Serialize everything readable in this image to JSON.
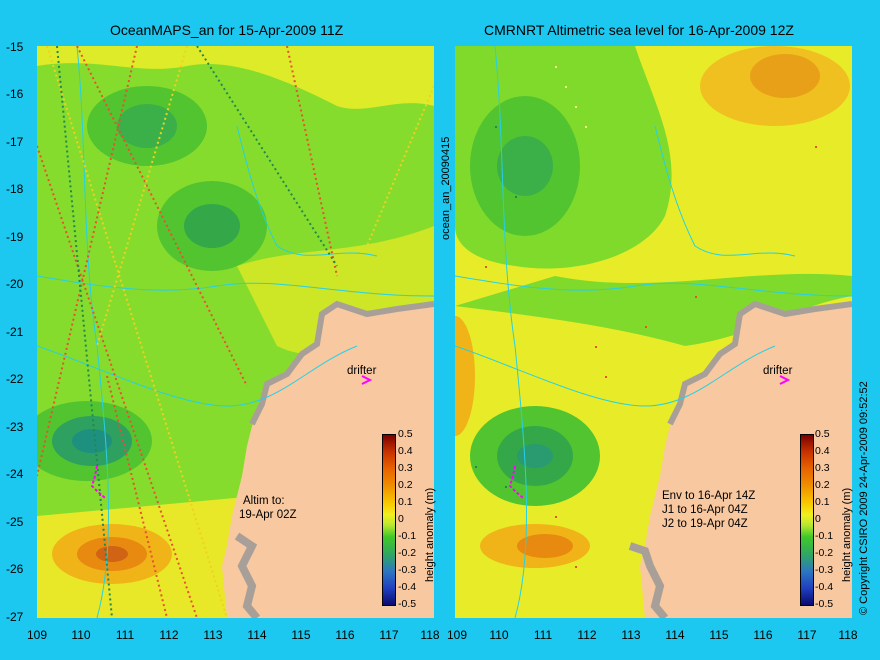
{
  "titles": {
    "left": "OceanMAPS_an for 15-Apr-2009 11Z",
    "right": "CMRNRT Altimetric sea level  for 16-Apr-2009 12Z"
  },
  "axes": {
    "y_ticks": [
      "-15",
      "-16",
      "-17",
      "-18",
      "-19",
      "-20",
      "-21",
      "-22",
      "-23",
      "-24",
      "-25",
      "-26",
      "-27"
    ],
    "x_ticks_left": [
      "109",
      "110",
      "111",
      "112",
      "113",
      "114",
      "115",
      "116",
      "117",
      "118"
    ],
    "x_ticks_right": [
      "109",
      "110",
      "111",
      "112",
      "113",
      "114",
      "115",
      "116",
      "117",
      "118"
    ]
  },
  "colorbar": {
    "label": "height anomaly (m)",
    "ticks": [
      "0.5",
      "0.4",
      "0.3",
      "0.2",
      "0.1",
      "0",
      "-0.1",
      "-0.2",
      "-0.3",
      "-0.4",
      "-0.5"
    ]
  },
  "labels": {
    "drifter": "drifter",
    "vertical_id": "ocean_an_20090415",
    "copyright": "© Copyright CSIRO 2009   24-Apr-2009 09:52:52"
  },
  "notes": {
    "left": [
      "Altim to:",
      "19-Apr 02Z"
    ],
    "right": [
      "Env to 16-Apr 14Z",
      "J1 to 16-Apr 04Z",
      "J2 to 19-Apr 04Z"
    ]
  },
  "colors": {
    "background": "#1cc8f0",
    "land": "#f8c8a0",
    "coast": "#b0a8a0",
    "drifter": "#ff00ff",
    "contour": "#20d0e0"
  }
}
